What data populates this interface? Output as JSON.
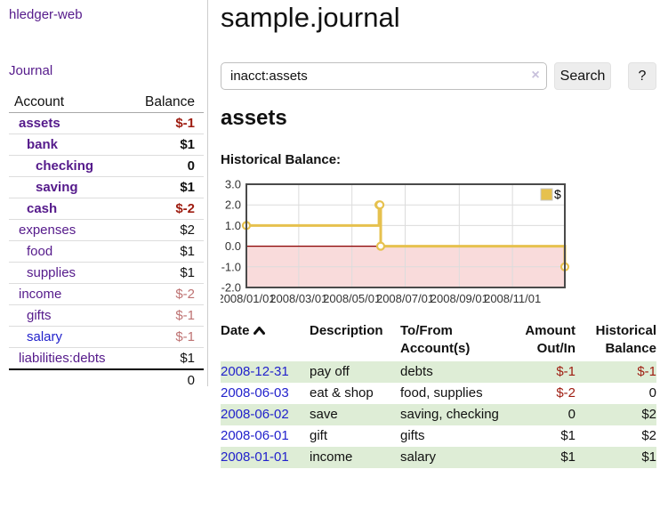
{
  "sidebar": {
    "app_title": "hledger-web",
    "journal_label": "Journal",
    "accounts_table": {
      "headers": {
        "account": "Account",
        "balance": "Balance"
      },
      "rows": [
        {
          "name": "assets",
          "balance": "$-1",
          "indent": 1,
          "bold": true,
          "balance_tone": "neg-strong"
        },
        {
          "name": "bank",
          "balance": "$1",
          "indent": 2,
          "bold": true,
          "balance_tone": "normal"
        },
        {
          "name": "checking",
          "balance": "0",
          "indent": 3,
          "bold": true,
          "balance_tone": "normal"
        },
        {
          "name": "saving",
          "balance": "$1",
          "indent": 3,
          "bold": true,
          "balance_tone": "normal"
        },
        {
          "name": "cash",
          "balance": "$-2",
          "indent": 2,
          "bold": true,
          "balance_tone": "neg-strong"
        },
        {
          "name": "expenses",
          "balance": "$2",
          "indent": 1,
          "bold": false,
          "balance_tone": "normal"
        },
        {
          "name": "food",
          "balance": "$1",
          "indent": 2,
          "bold": false,
          "balance_tone": "normal"
        },
        {
          "name": "supplies",
          "balance": "$1",
          "indent": 2,
          "bold": false,
          "balance_tone": "normal"
        },
        {
          "name": "income",
          "balance": "$-2",
          "indent": 1,
          "bold": false,
          "balance_tone": "neg-muted"
        },
        {
          "name": "gifts",
          "balance": "$-1",
          "indent": 2,
          "bold": false,
          "balance_tone": "neg-muted"
        },
        {
          "name": "salary",
          "balance": "$-1",
          "indent": 2,
          "bold": false,
          "balance_tone": "neg-muted",
          "link_tone": "blue"
        },
        {
          "name": "liabilities:debts",
          "balance": "$1",
          "indent": 1,
          "bold": false,
          "balance_tone": "normal"
        }
      ],
      "total": "0"
    }
  },
  "main": {
    "title": "sample.journal",
    "search": {
      "value": "inacct:assets",
      "clear_icon": "×",
      "button_label": "Search",
      "help_label": "?"
    },
    "account_heading": "assets",
    "chart_heading": "Historical Balance:"
  },
  "chart_data": {
    "type": "line",
    "step": true,
    "title": "Historical Balance",
    "series": [
      {
        "name": "$",
        "points": [
          [
            "2008-01-01",
            1.0
          ],
          [
            "2008-06-01",
            2.0
          ],
          [
            "2008-06-02",
            2.0
          ],
          [
            "2008-06-03",
            0.0
          ],
          [
            "2008-12-31",
            -1.0
          ]
        ]
      }
    ],
    "xlim": [
      "2008-01-01",
      "2008-12-31"
    ],
    "ylim": [
      -2.0,
      3.0
    ],
    "x_ticks": [
      {
        "date": "2008-01-01",
        "label": "2008/01/01"
      },
      {
        "date": "2008-03-01",
        "label": "2008/03/01"
      },
      {
        "date": "2008-05-01",
        "label": "2008/05/01"
      },
      {
        "date": "2008-07-01",
        "label": "2008/07/01"
      },
      {
        "date": "2008-09-01",
        "label": "2008/09/01"
      },
      {
        "date": "2008-11-01",
        "label": "2008/11/01"
      }
    ],
    "y_ticks": [
      {
        "value": 3,
        "label": "3.0"
      },
      {
        "value": 2,
        "label": "2.0"
      },
      {
        "value": 1,
        "label": "1.0"
      },
      {
        "value": 0,
        "label": "0.0"
      },
      {
        "value": -1,
        "label": "-1.0"
      },
      {
        "value": -2,
        "label": "-2.0"
      }
    ],
    "legend": {
      "label": "$",
      "position": "top-right"
    },
    "grid": true,
    "negative_region_shaded": true
  },
  "transactions": {
    "headers": {
      "date": "Date",
      "description": "Description",
      "accounts": "To/From Account(s)",
      "amount": "Amount Out/In",
      "balance": "Historical Balance"
    },
    "rows": [
      {
        "date": "2008-12-31",
        "description": "pay off",
        "accounts": "debts",
        "amount": "$-1",
        "balance": "$-1"
      },
      {
        "date": "2008-06-03",
        "description": "eat & shop",
        "accounts": "food, supplies",
        "amount": "$-2",
        "balance": "0"
      },
      {
        "date": "2008-06-02",
        "description": "save",
        "accounts": "saving, checking",
        "amount": "0",
        "balance": "$2"
      },
      {
        "date": "2008-06-01",
        "description": "gift",
        "accounts": "gifts",
        "amount": "$1",
        "balance": "$2"
      },
      {
        "date": "2008-01-01",
        "description": "income",
        "accounts": "salary",
        "amount": "$1",
        "balance": "$1"
      }
    ]
  },
  "colors": {
    "link_purple": "#551A8B",
    "link_blue": "#2222CC",
    "neg_strong": "#9E1C10",
    "neg_muted": "#BE7272",
    "row_green": "#DEEDD6",
    "chart_line": "#E6C14E",
    "chart_marker_fill": "#FFFFFF",
    "chart_negative_region": "#F9DBDB",
    "chart_zero_line": "#8B0000",
    "chart_grid": "#DCDCDC",
    "chart_border": "#4A4A4A",
    "chart_text": "#333333"
  }
}
